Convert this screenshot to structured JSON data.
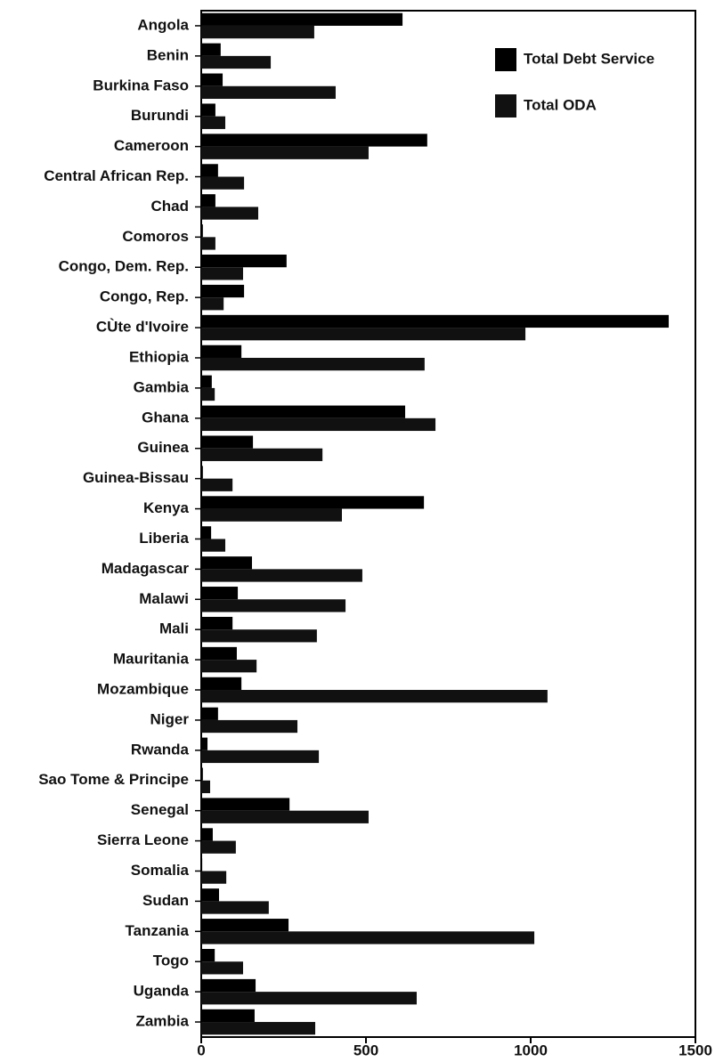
{
  "chart_data": {
    "type": "hbar",
    "categories": [
      "Angola",
      "Benin",
      "Burkina Faso",
      "Burundi",
      "Cameroon",
      "Central African Rep.",
      "Chad",
      "Comoros",
      "Congo, Dem. Rep.",
      "Congo, Rep.",
      "CÙte d'Ivoire",
      "Ethiopia",
      "Gambia",
      "Ghana",
      "Guinea",
      "Guinea-Bissau",
      "Kenya",
      "Liberia",
      "Madagascar",
      "Malawi",
      "Mali",
      "Mauritania",
      "Mozambique",
      "Niger",
      "Rwanda",
      "Sao Tome & Principe",
      "Senegal",
      "Sierra Leone",
      "Somalia",
      "Sudan",
      "Tanzania",
      "Togo",
      "Uganda",
      "Zambia"
    ],
    "series": [
      {
        "name": "Total Debt Service",
        "color": "#000000",
        "values": [
          611,
          59,
          65,
          43,
          686,
          51,
          43,
          5,
          259,
          130,
          1419,
          122,
          32,
          619,
          157,
          5,
          676,
          30,
          154,
          111,
          95,
          108,
          122,
          51,
          19,
          5,
          268,
          35,
          3,
          54,
          265,
          41,
          165,
          162
        ]
      },
      {
        "name": "Total ODA",
        "color": "#111111",
        "values": [
          343,
          211,
          408,
          73,
          508,
          130,
          173,
          43,
          127,
          68,
          984,
          678,
          41,
          711,
          368,
          95,
          427,
          73,
          489,
          438,
          351,
          168,
          1051,
          292,
          357,
          27,
          508,
          105,
          76,
          205,
          1011,
          127,
          654,
          346
        ]
      }
    ],
    "xlim": [
      0,
      1500
    ],
    "xticks": [
      0,
      500,
      1000,
      1500
    ],
    "legend": "upper right"
  }
}
